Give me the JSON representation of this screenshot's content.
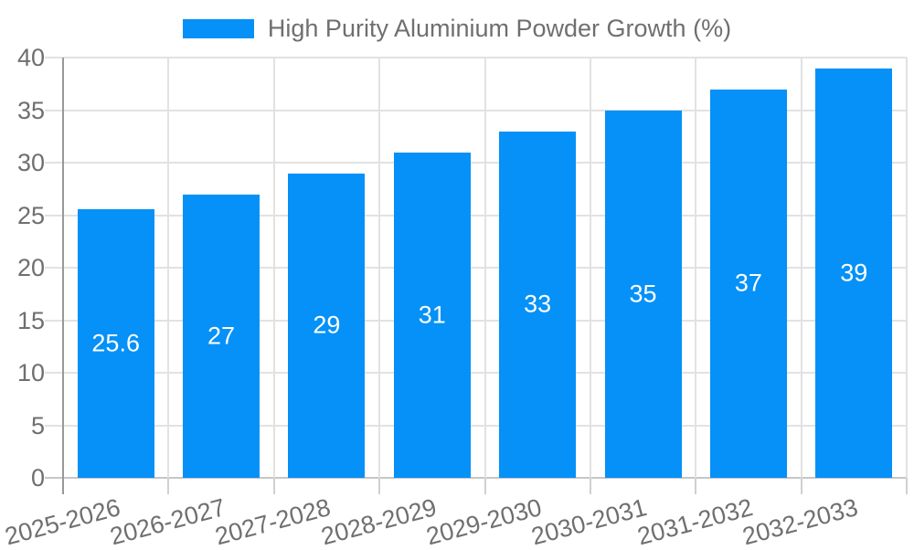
{
  "legend": {
    "label": "High Purity Aluminium Powder Growth (%)"
  },
  "chart_data": {
    "type": "bar",
    "title": "High Purity Aluminium Powder Growth (%)",
    "categories": [
      "2025-2026",
      "2026-2027",
      "2027-2028",
      "2028-2029",
      "2029-2030",
      "2030-2031",
      "2031-2032",
      "2032-2033"
    ],
    "values": [
      25.6,
      27,
      29,
      31,
      33,
      35,
      37,
      39
    ],
    "value_labels": [
      "25.6",
      "27",
      "29",
      "31",
      "33",
      "35",
      "37",
      "39"
    ],
    "xlabel": "",
    "ylabel": "",
    "ylim": [
      0,
      40
    ],
    "yticks": [
      0,
      5,
      10,
      15,
      20,
      25,
      30,
      35,
      40
    ],
    "grid": true,
    "legend_position": "top-center",
    "x_label_rotation_deg": -15,
    "colors": {
      "bar": "#0591f7",
      "value_label": "#ffffff",
      "axis_label": "#6f6f6f",
      "grid": "#e2e2e2",
      "zero_line": "#c6c6c6",
      "axis_line": "#999999",
      "tick": "#d0d0d0",
      "background": "#ffffff"
    }
  }
}
